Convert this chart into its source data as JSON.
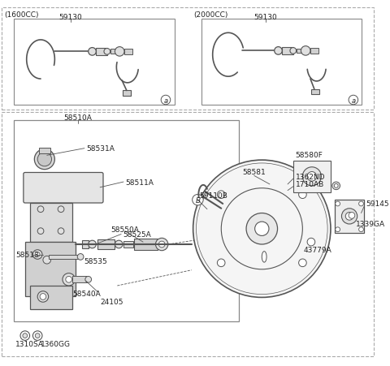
{
  "bg_color": "#ffffff",
  "line_color": "#555555",
  "text_color": "#222222",
  "labels": {
    "1600cc": "(1600CC)",
    "2000cc": "(2000CC)",
    "59130": "59130",
    "58510A": "58510A",
    "58531A": "58531A",
    "58511A": "58511A",
    "58513": "58513",
    "58525A": "58525A",
    "58535": "58535",
    "58550A": "58550A",
    "58540A": "58540A",
    "24105": "24105",
    "1310SA": "1310SA",
    "1360GG": "1360GG",
    "59110B": "59110B",
    "58581": "58581",
    "58580F": "58580F",
    "1362ND": "1362ND",
    "1710AB": "1710AB",
    "59145": "59145",
    "1339GA": "1339GA",
    "43779A": "43779A"
  }
}
